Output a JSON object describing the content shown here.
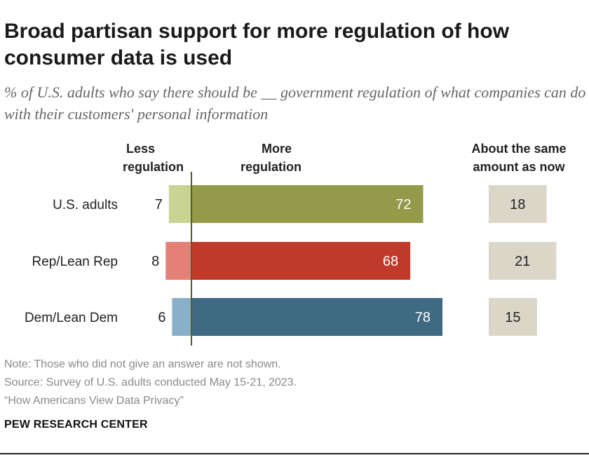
{
  "title": "Broad partisan support for more regulation of how consumer data is used",
  "subtitle": "% of U.S. adults who say there should be __ government regulation of what companies can do with their customers' personal information",
  "headers": {
    "less": [
      "Less",
      "regulation"
    ],
    "more": [
      "More",
      "regulation"
    ],
    "same": [
      "About the same",
      "amount as now"
    ]
  },
  "colors": {
    "less": [
      "#c9d394",
      "#e38078",
      "#8aafc9"
    ],
    "more": [
      "#939b4a",
      "#c0392b",
      "#3f6a84"
    ],
    "same": "#dad6c8",
    "divider": "#5a5a2a"
  },
  "chart_data": {
    "type": "bar",
    "categories": [
      "U.S. adults",
      "Rep/Lean Rep",
      "Dem/Lean Dem"
    ],
    "series": [
      {
        "name": "Less regulation",
        "values": [
          7,
          8,
          6
        ]
      },
      {
        "name": "More regulation",
        "values": [
          72,
          68,
          78
        ]
      },
      {
        "name": "About the same amount as now",
        "values": [
          18,
          21,
          15
        ]
      }
    ]
  },
  "footer": {
    "note": "Note: Those who did not give an answer are not shown.",
    "source": "Source: Survey of U.S. adults conducted May 15-21, 2023.",
    "report": "“How Americans View Data Privacy”",
    "org": "PEW RESEARCH CENTER"
  }
}
